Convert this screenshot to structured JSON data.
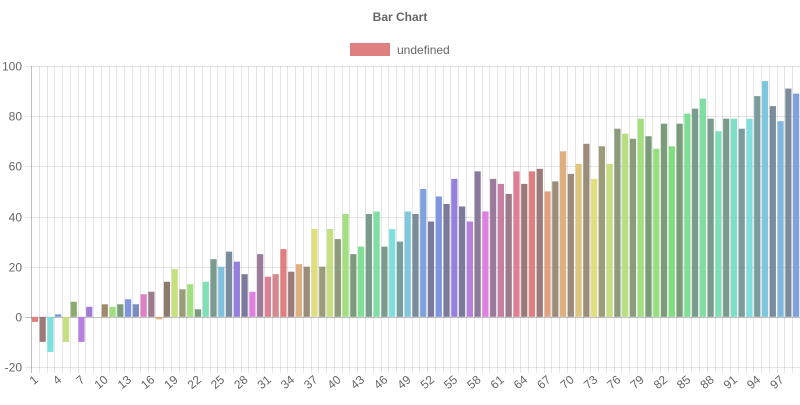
{
  "chart_data": {
    "type": "bar",
    "title": "Bar Chart",
    "legend": {
      "position": "top",
      "entries": [
        {
          "label": "undefined",
          "color": "#df7f7f"
        }
      ]
    },
    "x": [
      1,
      2,
      3,
      4,
      5,
      6,
      7,
      8,
      9,
      10,
      11,
      12,
      13,
      14,
      15,
      16,
      17,
      18,
      19,
      20,
      21,
      22,
      23,
      24,
      25,
      26,
      27,
      28,
      29,
      30,
      31,
      32,
      33,
      34,
      35,
      36,
      37,
      38,
      39,
      40,
      41,
      42,
      43,
      44,
      45,
      46,
      47,
      48,
      49,
      50,
      51,
      52,
      53,
      54,
      55,
      56,
      57,
      58,
      59,
      60,
      61,
      62,
      63,
      64,
      65,
      66,
      67,
      68,
      69,
      70,
      71,
      72,
      73,
      74,
      75,
      76,
      77,
      78,
      79,
      80,
      81,
      82,
      83,
      84,
      85,
      86,
      87,
      88,
      89,
      90,
      91,
      92,
      93,
      94,
      95,
      96,
      97,
      98,
      99
    ],
    "x_tick_labels": [
      "1",
      "4",
      "7",
      "10",
      "13",
      "16",
      "19",
      "22",
      "25",
      "28",
      "31",
      "34",
      "37",
      "40",
      "43",
      "46",
      "49",
      "52",
      "55",
      "58",
      "61",
      "64",
      "67",
      "70",
      "73",
      "76",
      "79",
      "82",
      "85",
      "88",
      "91",
      "94",
      "97"
    ],
    "values": [
      -2,
      -10,
      -14,
      1,
      -10,
      6,
      -10,
      4,
      0,
      5,
      4,
      5,
      7,
      5,
      9,
      10,
      -1,
      14,
      19,
      11,
      13,
      3,
      14,
      23,
      20,
      26,
      22,
      17,
      10,
      25,
      16,
      17,
      27,
      18,
      21,
      20,
      35,
      20,
      35,
      31,
      41,
      25,
      28,
      41,
      42,
      28,
      35,
      30,
      42,
      41,
      51,
      38,
      48,
      45,
      55,
      44,
      38,
      58,
      42,
      55,
      53,
      49,
      58,
      53,
      58,
      59,
      50,
      54,
      66,
      57,
      61,
      69,
      55,
      68,
      61,
      75,
      73,
      71,
      79,
      72,
      67,
      77,
      68,
      77,
      81,
      83,
      87,
      79,
      74,
      79,
      79,
      75,
      79,
      88,
      94,
      84,
      78,
      91,
      89
    ],
    "colors": [
      "#df7f7f",
      "#9c7a7a",
      "#7fdfdf",
      "#7a9cdf",
      "#c6df7f",
      "#8caa6e",
      "#b77fdf",
      "#9f7ad3",
      "#dfa27f",
      "#a08a6e",
      "#9fdf7f",
      "#7a9c7a",
      "#7f95df",
      "#7a8cc0",
      "#df7fc6",
      "#9c7a8c",
      "#dfb07f",
      "#8c7a6e",
      "#c6df7f",
      "#9c9c7a",
      "#a2df7f",
      "#7a9c7a",
      "#7fdfb7",
      "#7a9c8c",
      "#7fc0df",
      "#7a8c9c",
      "#957fdf",
      "#7a7a9c",
      "#df7fdf",
      "#9c7a9c",
      "#df7f95",
      "#d3898d",
      "#df7f7f",
      "#9c7a7a",
      "#dfb07f",
      "#9c8c7a",
      "#dfdf7f",
      "#9c9c7a",
      "#c6df7f",
      "#8c9c7a",
      "#a2df7f",
      "#7a9c7a",
      "#7fdf95",
      "#7a9c8c",
      "#7fdfa2",
      "#7a9c8c",
      "#7fdfdf",
      "#7a9c9c",
      "#7fc6df",
      "#7a8c9c",
      "#7fa2df",
      "#7a7a9c",
      "#7f95df",
      "#7a7a9c",
      "#957fdf",
      "#7a7a9c",
      "#b77fdf",
      "#8c7a9c",
      "#df7fdf",
      "#9c7a9c",
      "#c67fa2",
      "#9c7a8c",
      "#df7f95",
      "#9c7a7a",
      "#df7f7f",
      "#9c7a7a",
      "#dfa27f",
      "#9c8c7a",
      "#dfb07f",
      "#9c8c7a",
      "#dfc67f",
      "#9c8c7a",
      "#dfdf7f",
      "#9c9c7a",
      "#c6df7f",
      "#8c9c7a",
      "#b7df7f",
      "#8c9c7a",
      "#a2df7f",
      "#7a9c7a",
      "#95df7f",
      "#7a9c7a",
      "#7fdf7f",
      "#7a9c7a",
      "#7fdf95",
      "#7a9c8c",
      "#7fdfa2",
      "#7a9c8c",
      "#7fdfb7",
      "#7a9c8c",
      "#7fdfc6",
      "#7a9c9c",
      "#7fdfdf",
      "#7a9c9c",
      "#7fc6df",
      "#7a8c9c",
      "#7fb7df",
      "#7a8c9c",
      "#7fa2df"
    ],
    "ylim": [
      -20,
      100
    ],
    "y_ticks": [
      -20,
      0,
      20,
      40,
      60,
      80,
      100
    ],
    "grid": true,
    "xlabel": "",
    "ylabel": ""
  }
}
